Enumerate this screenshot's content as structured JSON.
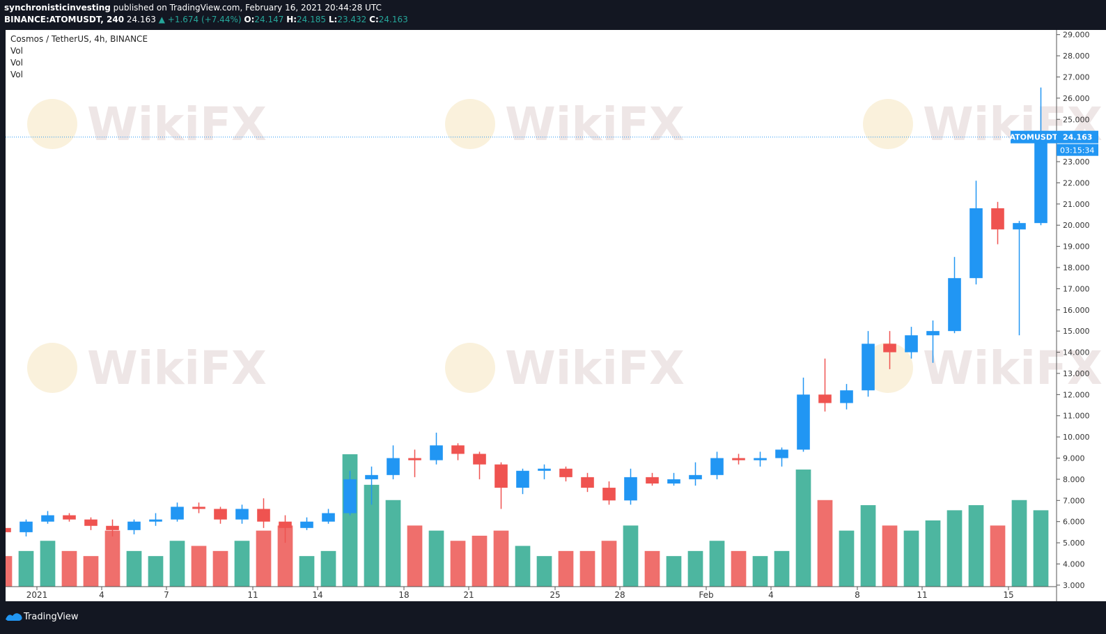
{
  "header": {
    "publisher": "synchronisticinvesting",
    "published": "published on TradingView.com, February 16, 2021 20:44:28 UTC",
    "symbol": "BINANCE:ATOMUSDT, 240",
    "last": "24.163",
    "change": "▲ +1.674 (+7.44%)",
    "o_label": "O:",
    "o": "24.147",
    "h_label": "H:",
    "h": "24.185",
    "l_label": "L:",
    "l": "23.432",
    "c_label": "C:",
    "c": "24.163"
  },
  "chart_data": {
    "type": "candlestick",
    "title": "Cosmos / TetherUS, 4h, BINANCE",
    "indicators": [
      "Vol",
      "Vol",
      "Vol"
    ],
    "categories": [
      null,
      null,
      "2021",
      null,
      null,
      "4",
      null,
      null,
      "7",
      null,
      null,
      null,
      "11",
      null,
      null,
      "14",
      null,
      null,
      null,
      "18",
      null,
      null,
      "21",
      null,
      null,
      null,
      "25",
      null,
      null,
      "28",
      null,
      null,
      null,
      "Feb",
      null,
      null,
      "4",
      null,
      null,
      null,
      "8",
      null,
      null,
      "11",
      null,
      null,
      null,
      "15",
      null
    ],
    "open": [
      5.7,
      5.5,
      6.0,
      6.3,
      6.1,
      5.8,
      5.6,
      6.0,
      6.1,
      6.7,
      6.6,
      6.1,
      6.6,
      6.0,
      5.7,
      6.0,
      6.4,
      8.0,
      8.2,
      9.0,
      8.9,
      9.6,
      9.2,
      8.7,
      7.6,
      8.4,
      8.5,
      8.1,
      7.6,
      7.0,
      8.1,
      7.8,
      8.0,
      8.2,
      9.0,
      8.9,
      9.0,
      9.4,
      12.0,
      11.6,
      12.2,
      14.4,
      14.0,
      14.8,
      15.0,
      17.5,
      20.8,
      19.8,
      20.1
    ],
    "high": [
      5.9,
      6.1,
      6.5,
      6.4,
      6.2,
      6.1,
      6.1,
      6.4,
      6.9,
      6.9,
      6.7,
      6.8,
      7.1,
      6.3,
      6.2,
      6.6,
      8.4,
      8.6,
      9.6,
      9.4,
      10.2,
      9.7,
      9.3,
      8.8,
      8.5,
      8.7,
      8.6,
      8.3,
      7.9,
      8.5,
      8.3,
      8.3,
      8.8,
      9.3,
      9.2,
      9.3,
      9.5,
      12.8,
      13.7,
      12.5,
      15.0,
      15.0,
      15.2,
      15.5,
      18.5,
      22.1,
      21.1,
      20.2,
      26.5
    ],
    "low": [
      5.4,
      5.3,
      5.9,
      6.0,
      5.6,
      5.3,
      5.4,
      5.8,
      6.0,
      6.4,
      5.9,
      5.9,
      5.7,
      5.0,
      5.6,
      5.9,
      6.3,
      6.8,
      8.0,
      8.1,
      8.7,
      8.9,
      8.0,
      6.6,
      7.3,
      8.0,
      7.9,
      7.4,
      6.8,
      6.8,
      7.7,
      7.7,
      7.7,
      8.0,
      8.7,
      8.6,
      8.6,
      9.3,
      11.2,
      11.3,
      11.9,
      13.2,
      13.7,
      13.5,
      14.9,
      17.2,
      19.1,
      14.8,
      20.0
    ],
    "close": [
      5.5,
      6.0,
      6.3,
      6.1,
      5.8,
      5.6,
      6.0,
      6.1,
      6.7,
      6.6,
      6.1,
      6.6,
      6.0,
      5.7,
      6.0,
      6.4,
      8.0,
      8.2,
      9.0,
      8.9,
      9.6,
      9.2,
      8.7,
      7.6,
      8.4,
      8.5,
      8.1,
      7.6,
      7.0,
      8.1,
      7.8,
      8.0,
      8.2,
      9.0,
      8.9,
      9.0,
      9.4,
      12.0,
      11.6,
      12.2,
      14.4,
      14.0,
      14.8,
      15.0,
      17.5,
      20.8,
      19.8,
      20.1,
      24.163
    ],
    "volume": [
      60,
      70,
      90,
      70,
      60,
      110,
      70,
      60,
      90,
      80,
      70,
      90,
      110,
      120,
      60,
      70,
      260,
      200,
      170,
      120,
      110,
      90,
      100,
      110,
      80,
      60,
      70,
      70,
      90,
      120,
      70,
      60,
      70,
      90,
      70,
      60,
      70,
      230,
      170,
      110,
      160,
      120,
      110,
      130,
      150,
      160,
      120,
      170,
      150
    ],
    "up_color": "#2196f3",
    "down_color": "#ef5350",
    "volume_up_color": "#4db6a0",
    "volume_down_color": "#ef6f6c",
    "ylim": [
      2.93,
      29.22
    ],
    "yticks": [
      {
        "value": 3,
        "label": "3.000"
      },
      {
        "value": 4,
        "label": "4.000"
      },
      {
        "value": 5,
        "label": "5.000"
      },
      {
        "value": 6,
        "label": "6.000"
      },
      {
        "value": 7,
        "label": "7.000"
      },
      {
        "value": 8,
        "label": "8.000"
      },
      {
        "value": 9,
        "label": "9.000"
      },
      {
        "value": 10,
        "label": "10.000"
      },
      {
        "value": 11,
        "label": "11.000"
      },
      {
        "value": 12,
        "label": "12.000"
      },
      {
        "value": 13,
        "label": "13.000"
      },
      {
        "value": 14,
        "label": "14.000"
      },
      {
        "value": 15,
        "label": "15.000"
      },
      {
        "value": 16,
        "label": "16.000"
      },
      {
        "value": 17,
        "label": "17.000"
      },
      {
        "value": 18,
        "label": "18.000"
      },
      {
        "value": 19,
        "label": "19.000"
      },
      {
        "value": 20,
        "label": "20.000"
      },
      {
        "value": 21,
        "label": "21.000"
      },
      {
        "value": 22,
        "label": "22.000"
      },
      {
        "value": 23,
        "label": "23.000"
      },
      {
        "value": 24,
        "label": "24.000"
      },
      {
        "value": 25,
        "label": "25.000"
      },
      {
        "value": 26,
        "label": "26.000"
      },
      {
        "value": 27,
        "label": "27.000"
      },
      {
        "value": 28,
        "label": "28.000"
      },
      {
        "value": 29,
        "label": "29.000"
      }
    ],
    "price_line": {
      "symbol": "ATOMUSDT",
      "value": 24.163,
      "countdown": "03:15:34",
      "color": "#2196f3"
    }
  },
  "watermark": "WikiFX",
  "footer": {
    "brand": "TradingView"
  }
}
